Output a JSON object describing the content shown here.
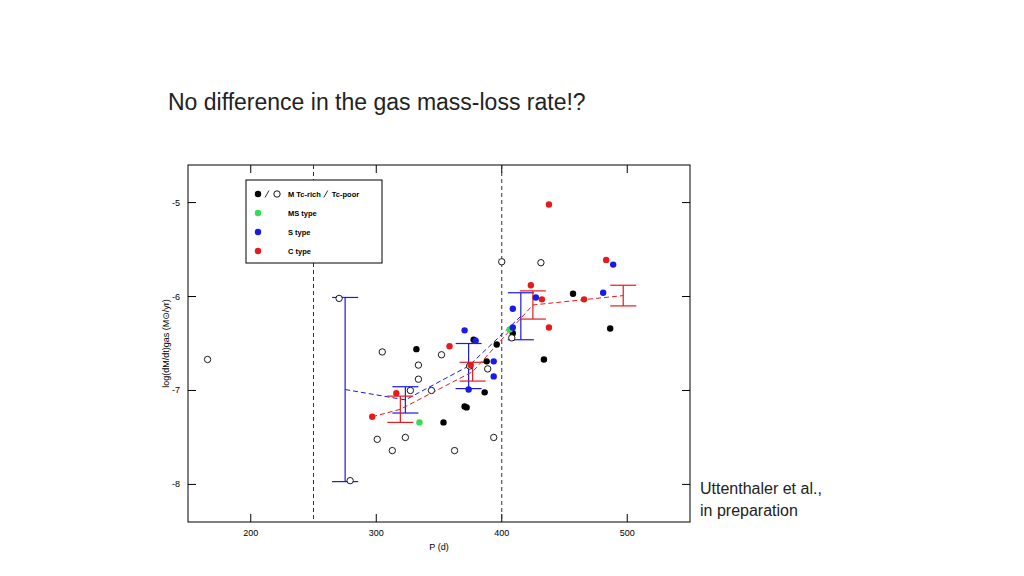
{
  "chart_data": {
    "type": "scatter",
    "title": "No difference in the gas mass-loss rate!?",
    "xlabel": "P (d)",
    "ylabel": "log(dM/dt)gas (M⊙/yr)",
    "xlim": [
      150,
      550
    ],
    "ylim": [
      -8.4,
      -4.6
    ],
    "xticks": [
      200,
      300,
      400,
      500
    ],
    "yticks": [
      -8,
      -7,
      -6,
      -5
    ],
    "vlines": [
      250,
      400
    ],
    "annotations": [
      "Uttenthaler et al.,",
      "in preparation"
    ],
    "legend": "upper left",
    "series": [
      {
        "name": "M Tc-rich",
        "color": "#000000",
        "marker": "filled",
        "x": [
          332,
          353.6,
          370.4,
          372,
          388,
          386.4,
          396,
          408.8,
          456.8,
          433.6,
          486.4,
          377.6
        ],
        "values": [
          -6.56,
          -7.34,
          -7.17,
          -7.18,
          -6.69,
          -7.02,
          -6.51,
          -6.39,
          -5.97,
          -6.67,
          -6.34,
          -6.46
        ]
      },
      {
        "name": "Tc-poor",
        "color": "#000000",
        "marker": "open",
        "x": [
          165.6,
          270.4,
          279.2,
          304.8,
          300.8,
          312.8,
          323.2,
          327.2,
          333.6,
          333.6,
          344,
          352,
          362.4,
          374.4,
          388.8,
          393.6,
          400,
          431.2,
          408
        ],
        "values": [
          -6.67,
          -6.02,
          -7.96,
          -6.59,
          -7.52,
          -7.64,
          -7.5,
          -7.0,
          -6.88,
          -6.73,
          -7.0,
          -6.62,
          -7.64,
          -6.74,
          -6.77,
          -7.5,
          -5.63,
          -5.64,
          -6.44
        ]
      },
      {
        "name": "MS type",
        "color": "#33dd55",
        "marker": "filled",
        "x": [
          334.4,
          406.4
        ],
        "values": [
          -7.34,
          -6.35
        ]
      },
      {
        "name": "S type",
        "color": "#1a1ae6",
        "marker": "filled",
        "x": [
          370.4,
          373.6,
          379.2,
          393.6,
          393.6,
          408.8,
          408.8,
          427.2,
          480.8,
          488.8
        ],
        "values": [
          -6.36,
          -6.99,
          -6.47,
          -6.69,
          -6.85,
          -6.13,
          -6.33,
          -6.01,
          -5.96,
          -5.66
        ]
      },
      {
        "name": "C type",
        "color": "#e61a1a",
        "marker": "filled",
        "x": [
          296.8,
          316,
          358.4,
          375.2,
          423.2,
          432,
          437.6,
          437.6,
          465.6,
          483.2
        ],
        "values": [
          -7.28,
          -7.03,
          -6.53,
          -6.73,
          -5.88,
          -6.03,
          -5.02,
          -6.33,
          -6.03,
          -5.61
        ]
      }
    ],
    "binned": [
      {
        "color": "#1a1ae6",
        "line_style": "dashed",
        "x": [
          275.2,
          323.2,
          373.6,
          415.2
        ],
        "values": [
          -6.99,
          -7.1,
          -6.74,
          -6.21
        ],
        "errors": [
          0.98,
          0.14,
          0.24,
          0.25
        ]
      },
      {
        "color": "#e61a1a",
        "line_style": "dashed",
        "x": [
          296.8,
          319.2,
          376.8,
          424.8,
          496.8
        ],
        "values": [
          -7.28,
          -7.2,
          -6.8,
          -6.09,
          -5.99
        ],
        "errors": [
          0,
          0.14,
          0.1,
          0.15,
          0.11
        ]
      }
    ]
  }
}
